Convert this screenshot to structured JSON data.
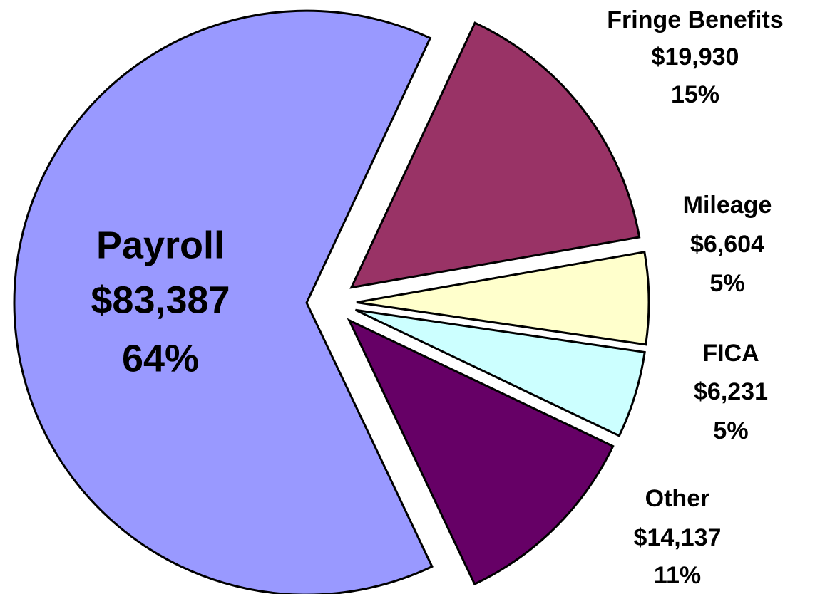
{
  "chart_data": {
    "type": "pie",
    "categories": [
      "Fringe Benefits",
      "Mileage",
      "FICA",
      "Other",
      "Payroll"
    ],
    "values": [
      19930,
      6604,
      6231,
      14137,
      83387
    ],
    "value_labels": [
      "$19,930",
      "$6,604",
      "$6,231",
      "$14,137",
      "$83,387"
    ],
    "percent_labels": [
      "15%",
      "5%",
      "5%",
      "11%",
      "64%"
    ],
    "colors": [
      "#993366",
      "#ffffcc",
      "#ccffff",
      "#660066",
      "#9999ff"
    ]
  }
}
